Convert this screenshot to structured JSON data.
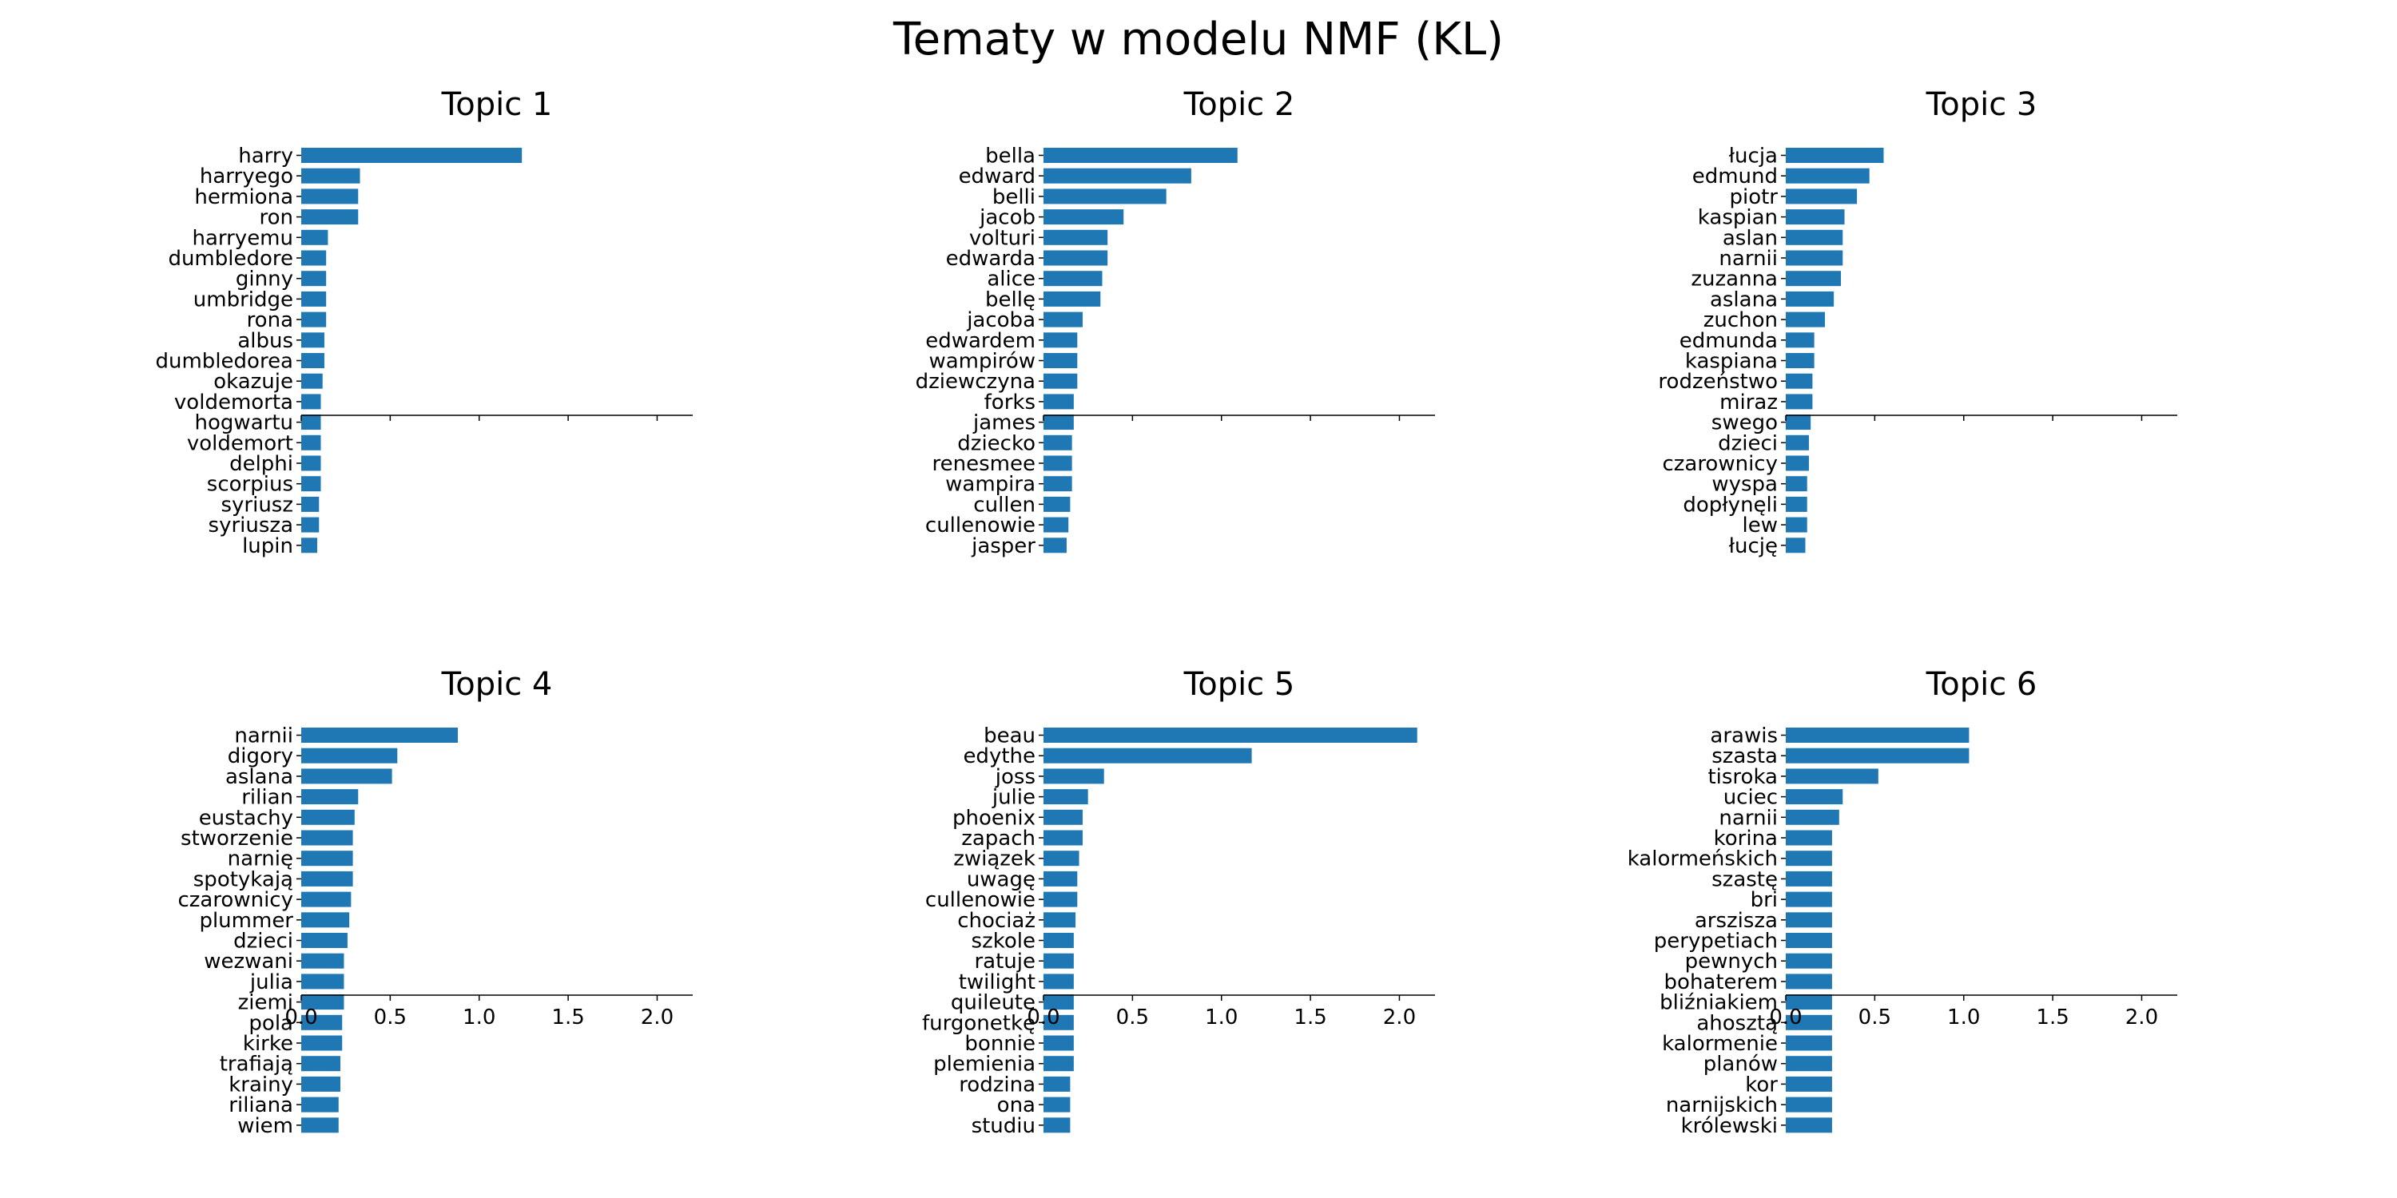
{
  "figure_title": "Tematy w modelu NMF (KL)",
  "colors": {
    "bar": "#1f77b4",
    "axis": "#000000"
  },
  "chart_data": [
    {
      "type": "bar",
      "orientation": "horizontal",
      "title": "Topic 1",
      "xlim": [
        0,
        2.2
      ],
      "xticks": [
        0.0,
        0.5,
        1.0,
        1.5,
        2.0
      ],
      "xtick_labels_shown": false,
      "categories": [
        "harry",
        "harryego",
        "hermiona",
        "ron",
        "harryemu",
        "dumbledore",
        "ginny",
        "umbridge",
        "rona",
        "albus",
        "dumbledorea",
        "okazuje",
        "voldemorta",
        "hogwartu",
        "voldemort",
        "delphi",
        "scorpius",
        "syriusz",
        "syriusza",
        "lupin"
      ],
      "values": [
        1.24,
        0.33,
        0.32,
        0.32,
        0.15,
        0.14,
        0.14,
        0.14,
        0.14,
        0.13,
        0.13,
        0.12,
        0.11,
        0.11,
        0.11,
        0.11,
        0.11,
        0.1,
        0.1,
        0.09
      ]
    },
    {
      "type": "bar",
      "orientation": "horizontal",
      "title": "Topic 2",
      "xlim": [
        0,
        2.2
      ],
      "xticks": [
        0.0,
        0.5,
        1.0,
        1.5,
        2.0
      ],
      "xtick_labels_shown": false,
      "categories": [
        "bella",
        "edward",
        "belli",
        "jacob",
        "volturi",
        "edwarda",
        "alice",
        "bellę",
        "jacoba",
        "edwardem",
        "wampirów",
        "dziewczyna",
        "forks",
        "james",
        "dziecko",
        "renesmee",
        "wampira",
        "cullen",
        "cullenowie",
        "jasper"
      ],
      "values": [
        1.09,
        0.83,
        0.69,
        0.45,
        0.36,
        0.36,
        0.33,
        0.32,
        0.22,
        0.19,
        0.19,
        0.19,
        0.17,
        0.17,
        0.16,
        0.16,
        0.16,
        0.15,
        0.14,
        0.13
      ]
    },
    {
      "type": "bar",
      "orientation": "horizontal",
      "title": "Topic 3",
      "xlim": [
        0,
        2.2
      ],
      "xticks": [
        0.0,
        0.5,
        1.0,
        1.5,
        2.0
      ],
      "xtick_labels_shown": false,
      "categories": [
        "łucja",
        "edmund",
        "piotr",
        "kaspian",
        "aslan",
        "narnii",
        "zuzanna",
        "aslana",
        "zuchon",
        "edmunda",
        "kaspiana",
        "rodzeństwo",
        "miraz",
        "swego",
        "dzieci",
        "czarownicy",
        "wyspa",
        "dopłynęli",
        "lew",
        "łucję"
      ],
      "values": [
        0.55,
        0.47,
        0.4,
        0.33,
        0.32,
        0.32,
        0.31,
        0.27,
        0.22,
        0.16,
        0.16,
        0.15,
        0.15,
        0.14,
        0.13,
        0.13,
        0.12,
        0.12,
        0.12,
        0.11
      ]
    },
    {
      "type": "bar",
      "orientation": "horizontal",
      "title": "Topic 4",
      "xlim": [
        0,
        2.2
      ],
      "xticks": [
        0.0,
        0.5,
        1.0,
        1.5,
        2.0
      ],
      "xtick_labels": [
        "0.0",
        "0.5",
        "1.0",
        "1.5",
        "2.0"
      ],
      "categories": [
        "narnii",
        "digory",
        "aslana",
        "rilian",
        "eustachy",
        "stworzenie",
        "narnię",
        "spotykają",
        "czarownicy",
        "plummer",
        "dzieci",
        "wezwani",
        "julia",
        "ziemi",
        "pola",
        "kirke",
        "trafiają",
        "krainy",
        "riliana",
        "wiem"
      ],
      "values": [
        0.88,
        0.54,
        0.51,
        0.32,
        0.3,
        0.29,
        0.29,
        0.29,
        0.28,
        0.27,
        0.26,
        0.24,
        0.24,
        0.24,
        0.23,
        0.23,
        0.22,
        0.22,
        0.21,
        0.21
      ]
    },
    {
      "type": "bar",
      "orientation": "horizontal",
      "title": "Topic 5",
      "xlim": [
        0,
        2.2
      ],
      "xticks": [
        0.0,
        0.5,
        1.0,
        1.5,
        2.0
      ],
      "xtick_labels": [
        "0.0",
        "0.5",
        "1.0",
        "1.5",
        "2.0"
      ],
      "categories": [
        "beau",
        "edythe",
        "joss",
        "julie",
        "phoenix",
        "zapach",
        "związek",
        "uwagę",
        "cullenowie",
        "chociaż",
        "szkole",
        "ratuje",
        "twilight",
        "quileute",
        "furgonetkę",
        "bonnie",
        "plemienia",
        "rodzina",
        "ona",
        "studiu"
      ],
      "values": [
        2.1,
        1.17,
        0.34,
        0.25,
        0.22,
        0.22,
        0.2,
        0.19,
        0.19,
        0.18,
        0.17,
        0.17,
        0.17,
        0.17,
        0.17,
        0.17,
        0.17,
        0.15,
        0.15,
        0.15
      ]
    },
    {
      "type": "bar",
      "orientation": "horizontal",
      "title": "Topic 6",
      "xlim": [
        0,
        2.2
      ],
      "xticks": [
        0.0,
        0.5,
        1.0,
        1.5,
        2.0
      ],
      "xtick_labels": [
        "0.0",
        "0.5",
        "1.0",
        "1.5",
        "2.0"
      ],
      "categories": [
        "arawis",
        "szasta",
        "tisroka",
        "uciec",
        "narnii",
        "korina",
        "kalormeńskich",
        "szastę",
        "bri",
        "arszisza",
        "perypetiach",
        "pewnych",
        "bohaterem",
        "bliźniakiem",
        "ahosztą",
        "kalormenie",
        "planów",
        "kor",
        "narnijskich",
        "królewski"
      ],
      "values": [
        1.03,
        1.03,
        0.52,
        0.32,
        0.3,
        0.26,
        0.26,
        0.26,
        0.26,
        0.26,
        0.26,
        0.26,
        0.26,
        0.26,
        0.26,
        0.26,
        0.26,
        0.26,
        0.26,
        0.26
      ]
    }
  ]
}
